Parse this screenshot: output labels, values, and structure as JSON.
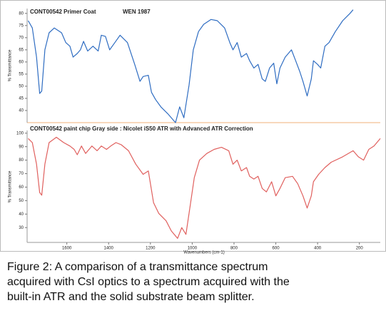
{
  "chart_data": [
    {
      "type": "line",
      "title": "CONT00542  Primer Coat",
      "annotation": "WEN 1987",
      "y_label": "% Transmittance",
      "xlim": [
        1790,
        100
      ],
      "ylim": [
        35,
        82
      ],
      "yticks": [
        40,
        45,
        50,
        55,
        60,
        65,
        70,
        75,
        80
      ],
      "x": [
        1785,
        1765,
        1745,
        1730,
        1720,
        1705,
        1685,
        1660,
        1625,
        1605,
        1585,
        1570,
        1550,
        1535,
        1520,
        1500,
        1475,
        1450,
        1435,
        1415,
        1395,
        1370,
        1345,
        1310,
        1275,
        1250,
        1235,
        1210,
        1195,
        1175,
        1150,
        1115,
        1080,
        1060,
        1040,
        1015,
        995,
        970,
        945,
        910,
        880,
        845,
        820,
        805,
        785,
        765,
        740,
        725,
        705,
        685,
        665,
        650,
        630,
        610,
        595,
        580,
        555,
        525,
        505,
        485,
        470,
        450,
        430,
        420,
        400,
        385,
        365,
        345,
        315,
        280,
        245,
        230
      ],
      "series": [
        {
          "color": "#2f6dc2",
          "values": [
            77,
            74,
            62,
            47,
            48,
            65,
            72,
            74,
            72,
            68,
            66.5,
            62,
            63.5,
            65,
            68.5,
            64.5,
            66.5,
            64.5,
            71,
            70.5,
            65,
            68,
            71,
            68,
            59,
            52,
            54,
            54.5,
            47.5,
            44.5,
            41.5,
            38.5,
            35,
            41.5,
            37,
            50.5,
            65,
            72.5,
            75.5,
            77.5,
            77,
            74,
            68,
            65,
            68,
            62,
            63.5,
            60.5,
            57.5,
            59,
            53,
            52,
            57.5,
            59.5,
            51,
            57.5,
            62,
            65,
            60.5,
            56,
            52,
            46,
            53,
            60.5,
            59,
            57.5,
            66.5,
            68,
            72.5,
            77,
            80,
            81.5
          ]
        }
      ]
    },
    {
      "type": "line",
      "title": "CONT00542 paint chip Gray side : Nicolet iS50 ATR with Advanced ATR Correction",
      "y_label": "% Transmittance",
      "x_label": "Wavenumbers (cm-1)",
      "xlim": [
        1790,
        100
      ],
      "ylim": [
        19,
        102
      ],
      "yticks": [
        30,
        40,
        50,
        60,
        70,
        80,
        90,
        100
      ],
      "xticks": [
        1600,
        1400,
        1200,
        1000,
        800,
        600,
        400,
        200
      ],
      "x": [
        1785,
        1765,
        1745,
        1730,
        1720,
        1705,
        1685,
        1650,
        1615,
        1585,
        1565,
        1550,
        1530,
        1510,
        1480,
        1455,
        1435,
        1410,
        1390,
        1365,
        1340,
        1305,
        1270,
        1235,
        1210,
        1185,
        1160,
        1125,
        1100,
        1070,
        1050,
        1030,
        1010,
        990,
        965,
        930,
        895,
        860,
        825,
        805,
        785,
        765,
        740,
        725,
        705,
        685,
        665,
        645,
        620,
        600,
        580,
        555,
        520,
        495,
        470,
        450,
        430,
        420,
        395,
        365,
        335,
        280,
        230,
        205,
        180,
        155,
        130,
        100
      ],
      "series": [
        {
          "color": "#e0605e",
          "values": [
            96,
            93,
            77,
            56,
            54,
            77,
            93,
            97,
            93,
            90.5,
            88,
            84,
            90.5,
            85,
            90.5,
            87,
            90.5,
            88,
            90.5,
            93,
            91.5,
            87,
            77,
            69.5,
            72,
            48.5,
            40.5,
            35,
            27.5,
            22,
            30,
            25,
            46,
            67,
            80,
            85,
            88,
            89.5,
            87,
            77,
            80,
            72,
            74.5,
            68,
            66,
            68,
            59,
            56.5,
            64,
            53.5,
            59,
            67,
            68,
            62.5,
            53.5,
            44.5,
            53.5,
            64,
            69.5,
            74.5,
            78.5,
            82.5,
            87,
            82.5,
            80,
            88,
            90.5,
            96
          ]
        }
      ]
    }
  ],
  "caption": [
    "Figure 2:  A comparison of a transmittance spectrum",
    "acquired with CsI optics to a spectrum acquired with the",
    "built-in ATR and the solid substrate beam splitter."
  ]
}
